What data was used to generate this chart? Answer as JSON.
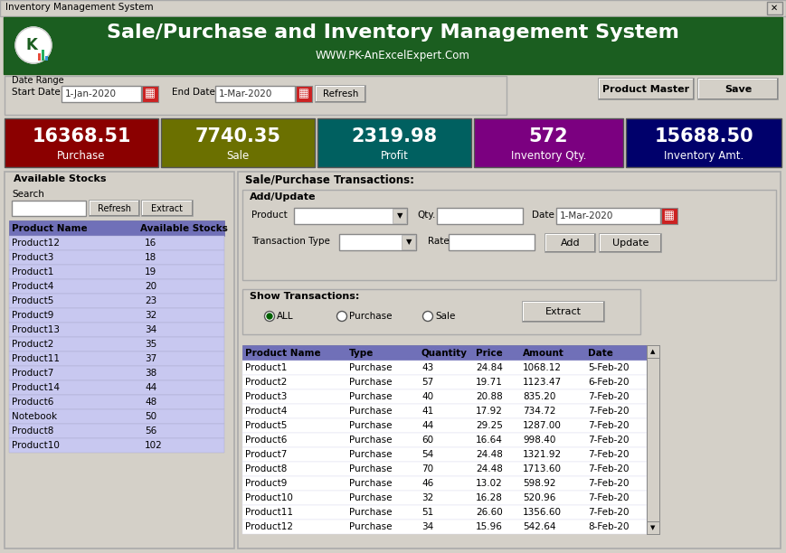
{
  "title_bar": "Inventory Management System",
  "header_title": "Sale/Purchase and Inventory Management System",
  "header_subtitle": "WWW.PK-AnExcelExpert.Com",
  "header_bg": "#1b5e20",
  "window_bg": "#d4d0c8",
  "kpi_boxes": [
    {
      "label": "Purchase",
      "value": "16368.51",
      "bg": "#8b0000",
      "fg": "#ffffff"
    },
    {
      "label": "Sale",
      "value": "7740.35",
      "bg": "#6b7000",
      "fg": "#ffffff"
    },
    {
      "label": "Profit",
      "value": "2319.98",
      "bg": "#006060",
      "fg": "#ffffff"
    },
    {
      "label": "Inventory Qty.",
      "value": "572",
      "bg": "#7b0080",
      "fg": "#ffffff"
    },
    {
      "label": "Inventory Amt.",
      "value": "15688.50",
      "bg": "#00006b",
      "fg": "#ffffff"
    }
  ],
  "stocks_products": [
    [
      "Product12",
      "16"
    ],
    [
      "Product3",
      "18"
    ],
    [
      "Product1",
      "19"
    ],
    [
      "Product4",
      "20"
    ],
    [
      "Product5",
      "23"
    ],
    [
      "Product9",
      "32"
    ],
    [
      "Product13",
      "34"
    ],
    [
      "Product2",
      "35"
    ],
    [
      "Product11",
      "37"
    ],
    [
      "Product7",
      "38"
    ],
    [
      "Product14",
      "44"
    ],
    [
      "Product6",
      "48"
    ],
    [
      "Notebook",
      "50"
    ],
    [
      "Product8",
      "56"
    ],
    [
      "Product10",
      "102"
    ]
  ],
  "transactions": [
    [
      "Product1",
      "Purchase",
      "43",
      "24.84",
      "1068.12",
      "5-Feb-20"
    ],
    [
      "Product2",
      "Purchase",
      "57",
      "19.71",
      "1123.47",
      "6-Feb-20"
    ],
    [
      "Product3",
      "Purchase",
      "40",
      "20.88",
      "835.20",
      "7-Feb-20"
    ],
    [
      "Product4",
      "Purchase",
      "41",
      "17.92",
      "734.72",
      "7-Feb-20"
    ],
    [
      "Product5",
      "Purchase",
      "44",
      "29.25",
      "1287.00",
      "7-Feb-20"
    ],
    [
      "Product6",
      "Purchase",
      "60",
      "16.64",
      "998.40",
      "7-Feb-20"
    ],
    [
      "Product7",
      "Purchase",
      "54",
      "24.48",
      "1321.92",
      "7-Feb-20"
    ],
    [
      "Product8",
      "Purchase",
      "70",
      "24.48",
      "1713.60",
      "7-Feb-20"
    ],
    [
      "Product9",
      "Purchase",
      "46",
      "13.02",
      "598.92",
      "7-Feb-20"
    ],
    [
      "Product10",
      "Purchase",
      "32",
      "16.28",
      "520.96",
      "7-Feb-20"
    ],
    [
      "Product11",
      "Purchase",
      "51",
      "26.60",
      "1356.60",
      "7-Feb-20"
    ],
    [
      "Product12",
      "Purchase",
      "34",
      "15.96",
      "542.64",
      "8-Feb-20"
    ]
  ],
  "stock_header_bg": "#7070b8",
  "stock_row_bg": "#c8c8f0",
  "trans_header_bg": "#7070b8",
  "trans_row_bg": "#ffffff"
}
